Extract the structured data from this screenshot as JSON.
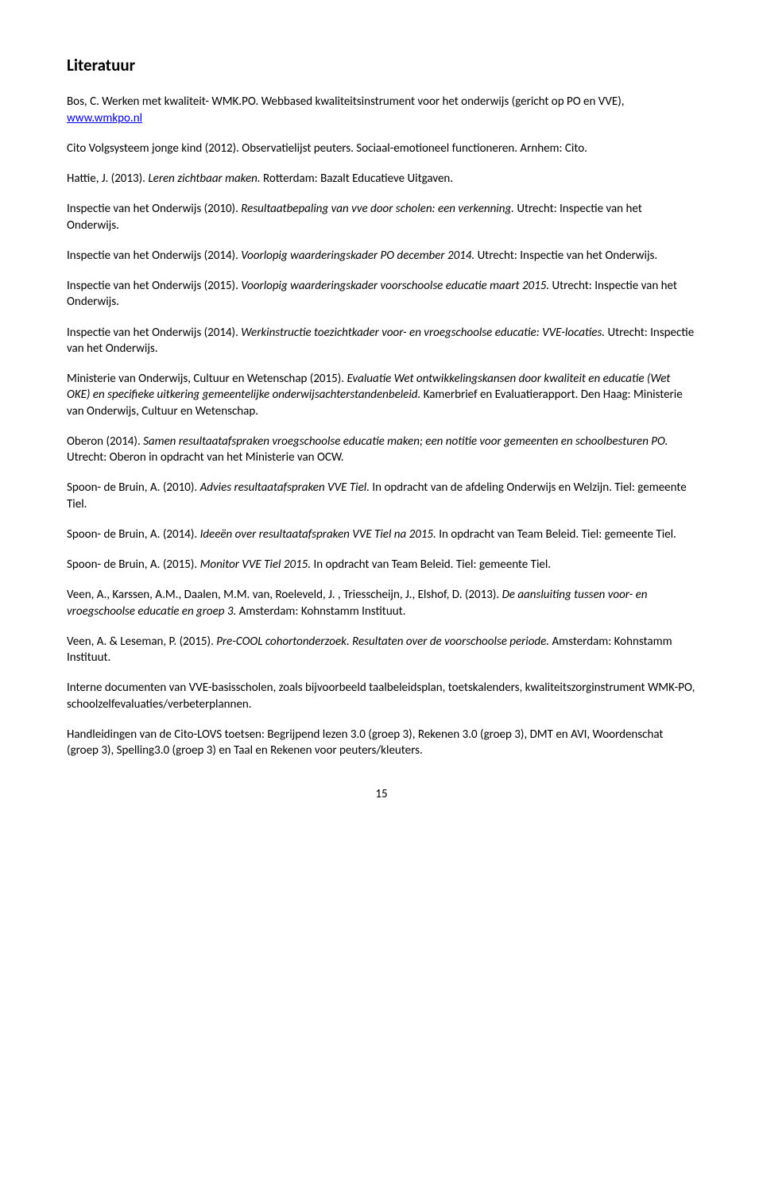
{
  "heading": "Literatuur",
  "paragraphs": {
    "p1_1": "Bos, C. Werken met kwaliteit- WMK.PO. Webbased kwaliteitsinstrument voor het onderwijs (gericht op PO en VVE), ",
    "p1_link": "www.wmkpo.nl",
    "p2": "Cito Volgsysteem jonge kind (2012). Observatielijst peuters. Sociaal-emotioneel functioneren. Arnhem: Cito.",
    "p3_1": "Hattie, J. (2013). ",
    "p3_2": "Leren zichtbaar maken. ",
    "p3_3": "Rotterdam: Bazalt Educatieve Uitgaven.",
    "p4_1": "Inspectie van het Onderwijs (2010). ",
    "p4_2": "Resultaatbepaling van vve door scholen: een verkenning. ",
    "p4_3": "Utrecht: Inspectie van het Onderwijs.",
    "p5_1": "Inspectie van het Onderwijs (2014). ",
    "p5_2": "Voorlopig waarderingskader PO december 2014. ",
    "p5_3": "Utrecht: Inspectie van het Onderwijs.",
    "p6_1": "Inspectie van het Onderwijs (2015). ",
    "p6_2": "Voorlopig waarderingskader voorschoolse educatie maart 2015. ",
    "p6_3": "Utrecht: Inspectie van het Onderwijs.",
    "p7_1": "Inspectie van het Onderwijs (2014). ",
    "p7_2": "Werkinstructie toezichtkader voor- en vroegschoolse educatie: VVE-locaties. ",
    "p7_3": "Utrecht: Inspectie van het Onderwijs.",
    "p8_1": "Ministerie van Onderwijs, Cultuur en Wetenschap (2015). ",
    "p8_2": "Evaluatie Wet ontwikkelingskansen door kwaliteit en educatie (Wet OKE) en specifieke uitkering gemeentelijke onderwijsachterstandenbeleid. ",
    "p8_3": "Kamerbrief en Evaluatierapport. Den Haag: Ministerie van Onderwijs, Cultuur en Wetenschap.",
    "p9_1": "Oberon (2014). ",
    "p9_2": "Samen resultaatafspraken vroegschoolse educatie maken; een notitie voor gemeenten en schoolbesturen PO. ",
    "p9_3": "Utrecht: Oberon in opdracht van het Ministerie van OCW.",
    "p10_1": "Spoon- de Bruin, A. (2010). ",
    "p10_2": "Advies resultaatafspraken VVE Tiel. ",
    "p10_3": "In opdracht van de afdeling Onderwijs en Welzijn. Tiel: gemeente Tiel.",
    "p11_1": "Spoon- de Bruin, A. (2014). ",
    "p11_2": "Ideeën over resultaatafspraken VVE Tiel na 2015. ",
    "p11_3": "In opdracht van Team Beleid. Tiel: gemeente Tiel.",
    "p12_1": "Spoon- de Bruin, A. (2015). ",
    "p12_2": "Monitor VVE Tiel 2015. ",
    "p12_3": "In opdracht van Team Beleid. Tiel: gemeente Tiel.",
    "p13_1": "Veen, A., Karssen, A.M., Daalen, M.M. van, Roeleveld, J. , Triesscheijn, J., Elshof, D. (2013). ",
    "p13_2": "De aansluiting tussen voor- en vroegschoolse educatie en groep 3. ",
    "p13_3": "Amsterdam: Kohnstamm Instituut.",
    "p14_1": "Veen, A. &  Leseman, P. (2015). ",
    "p14_2": "Pre-COOL cohortonderzoek. Resultaten over de voorschoolse periode. ",
    "p14_3": "Amsterdam: Kohnstamm Instituut.",
    "p15": "Interne documenten van VVE-basisscholen, zoals bijvoorbeeld taalbeleidsplan, toetskalenders, kwaliteitszorginstrument WMK-PO, schoolzelfevaluaties/verbeterplannen.",
    "p16": "Handleidingen van de Cito-LOVS toetsen: Begrijpend lezen 3.0 (groep 3), Rekenen 3.0 (groep 3), DMT en AVI, Woordenschat (groep 3), Spelling3.0 (groep 3) en Taal en Rekenen voor peuters/kleuters."
  },
  "page_number": "15"
}
